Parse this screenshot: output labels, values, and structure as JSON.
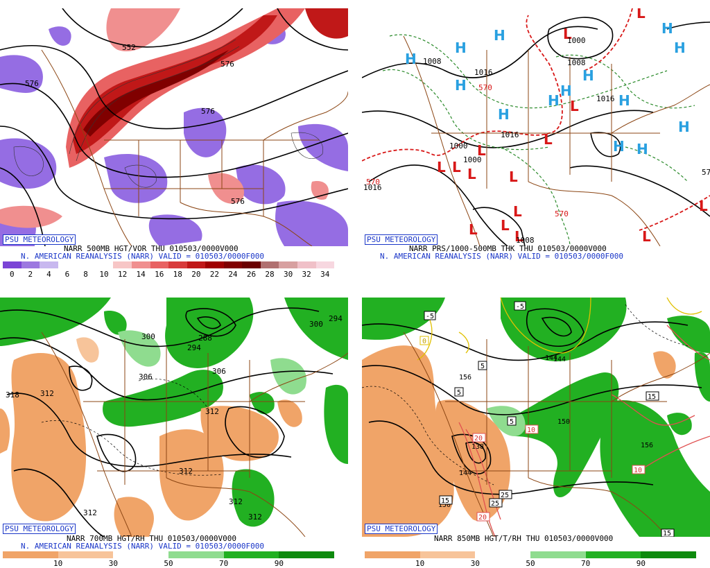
{
  "panels": [
    {
      "tag": "PSU METEOROLOGY",
      "caption1": "NARR 500MB HGT/VOR THU 010503/0000V000",
      "caption2": "N. AMERICAN REANALYSIS (NARR) VALID = 010503/0000F000",
      "contour_labels": [
        "576",
        "576",
        "576",
        "552",
        "576"
      ],
      "legend_ticks": [
        "0",
        "2",
        "4",
        "6",
        "8",
        "10",
        "12",
        "14",
        "16",
        "18",
        "20",
        "22",
        "24",
        "26",
        "28",
        "30",
        "32",
        "34"
      ],
      "legend_colors": [
        "#7b44d6",
        "#9c78e0",
        "#c8b8ef",
        "#ffffff",
        "#ffffff",
        "#ffffff",
        "#f7c6c6",
        "#f08f8f",
        "#e86262",
        "#d83b3b",
        "#c01818",
        "#a00000",
        "#800000",
        "#6a0000",
        "#b07070",
        "#d7a0a0",
        "#f0c0c8",
        "#f7d7e0"
      ]
    },
    {
      "tag": "PSU METEOROLOGY",
      "caption1": "NARR PRS/1000-500MB THK THU 010503/0000V000",
      "caption2": "N. AMERICAN REANALYSIS (NARR) VALID = 010503/0000F000",
      "contour_labels": [
        "1000",
        "1008",
        "1016",
        "1016",
        "1000",
        "570",
        "570",
        "1008",
        "1016",
        "570",
        "1008",
        "1016",
        "1000",
        "570"
      ]
    },
    {
      "tag": "PSU METEOROLOGY",
      "caption1": "NARR 700MB HGT/RH THU 010503/0000V000",
      "caption2": "N. AMERICAN REANALYSIS (NARR) VALID = 010503/0000F000",
      "contour_labels": [
        "300",
        "294",
        "288",
        "306",
        "306",
        "318",
        "312",
        "312",
        "312",
        "312",
        "312",
        "312",
        "294",
        "300"
      ],
      "legend_ticks": [
        "10",
        "30",
        "50",
        "70",
        "90"
      ],
      "legend_colors": [
        "#f0a468",
        "#f7c49a",
        "#ffffff",
        "#8fdc8f",
        "#22b022",
        "#0e8a0e"
      ]
    },
    {
      "tag": "PSU METEOROLOGY",
      "caption1": "NARR 850MB HGT/T/RH THU 010503/0000V000",
      "caption2": "",
      "contour_labels": [
        "-5",
        "-5",
        "0",
        "5",
        "5",
        "5",
        "144",
        "156",
        "150",
        "138",
        "144",
        "150",
        "156",
        "10",
        "10",
        "15",
        "15",
        "20",
        "20",
        "25",
        "25",
        "15",
        "144"
      ],
      "legend_ticks": [
        "10",
        "30",
        "50",
        "70",
        "90"
      ],
      "legend_colors": [
        "#f0a468",
        "#f7c49a",
        "#ffffff",
        "#8fdc8f",
        "#22b022",
        "#0e8a0e"
      ]
    }
  ]
}
